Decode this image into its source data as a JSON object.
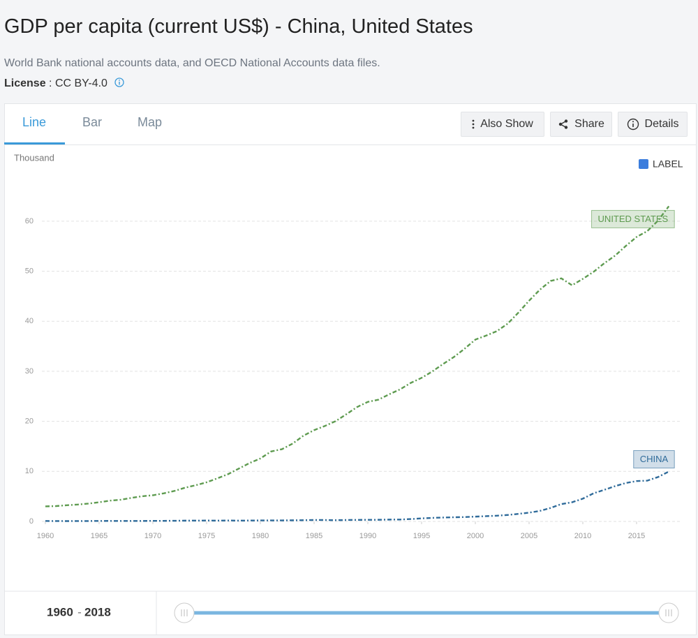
{
  "header": {
    "title": "GDP per capita (current US$) - China, United States",
    "subtitle": "World Bank national accounts data, and OECD National Accounts data files.",
    "license_label": "License",
    "license_separator": ":",
    "license_value": "CC BY-4.0"
  },
  "tabs": [
    "Line",
    "Bar",
    "Map"
  ],
  "buttons": [
    "Also Show",
    "Share",
    "Details"
  ],
  "label_toggle": {
    "label": "LABEL",
    "checked": true
  },
  "chart_data": {
    "type": "line",
    "y_axis_label": "Thousand",
    "grid": true,
    "line_style": "dashdot",
    "x": [
      1960,
      1961,
      1962,
      1963,
      1964,
      1965,
      1966,
      1967,
      1968,
      1969,
      1970,
      1971,
      1972,
      1973,
      1974,
      1975,
      1976,
      1977,
      1978,
      1979,
      1980,
      1981,
      1982,
      1983,
      1984,
      1985,
      1986,
      1987,
      1988,
      1989,
      1990,
      1991,
      1992,
      1993,
      1994,
      1995,
      1996,
      1997,
      1998,
      1999,
      2000,
      2001,
      2002,
      2003,
      2004,
      2005,
      2006,
      2007,
      2008,
      2009,
      2010,
      2011,
      2012,
      2013,
      2014,
      2015,
      2016,
      2017,
      2018
    ],
    "xlim": [
      1960,
      2018
    ],
    "xticks": [
      1960,
      1965,
      1970,
      1975,
      1980,
      1985,
      1990,
      1995,
      2000,
      2005,
      2010,
      2015
    ],
    "ylim": [
      0,
      65
    ],
    "yticks": [
      0,
      10,
      20,
      30,
      40,
      50,
      60
    ],
    "series": [
      {
        "name": "UNITED STATES",
        "color": "#5e9b50",
        "values": [
          3.01,
          3.07,
          3.24,
          3.37,
          3.57,
          3.83,
          4.15,
          4.33,
          4.7,
          5.03,
          5.23,
          5.61,
          6.09,
          6.74,
          7.24,
          7.82,
          8.61,
          9.45,
          10.56,
          11.67,
          12.58,
          13.98,
          14.43,
          15.54,
          17.12,
          18.24,
          19.07,
          20.04,
          21.42,
          22.86,
          23.89,
          24.34,
          25.42,
          26.39,
          27.69,
          28.69,
          29.97,
          31.46,
          32.85,
          34.51,
          36.33,
          37.13,
          38.02,
          39.5,
          41.71,
          44.11,
          46.3,
          48.05,
          48.57,
          47.19,
          48.47,
          49.88,
          51.6,
          53.11,
          55.05,
          56.84,
          58.02,
          60.11,
          62.99
        ]
      },
      {
        "name": "CHINA",
        "color": "#2f6b9a",
        "values": [
          0.09,
          0.076,
          0.07,
          0.074,
          0.085,
          0.098,
          0.104,
          0.097,
          0.091,
          0.1,
          0.113,
          0.119,
          0.132,
          0.157,
          0.16,
          0.178,
          0.165,
          0.185,
          0.156,
          0.184,
          0.195,
          0.197,
          0.203,
          0.225,
          0.25,
          0.294,
          0.282,
          0.252,
          0.284,
          0.311,
          0.318,
          0.333,
          0.366,
          0.377,
          0.473,
          0.61,
          0.709,
          0.782,
          0.829,
          0.873,
          0.959,
          1.053,
          1.149,
          1.289,
          1.509,
          1.753,
          2.099,
          2.694,
          3.468,
          3.832,
          4.55,
          5.618,
          6.317,
          7.051,
          7.679,
          8.067,
          8.148,
          8.879,
          9.977
        ]
      }
    ]
  },
  "slider": {
    "start": 1960,
    "separator": "-",
    "end": 2018
  }
}
